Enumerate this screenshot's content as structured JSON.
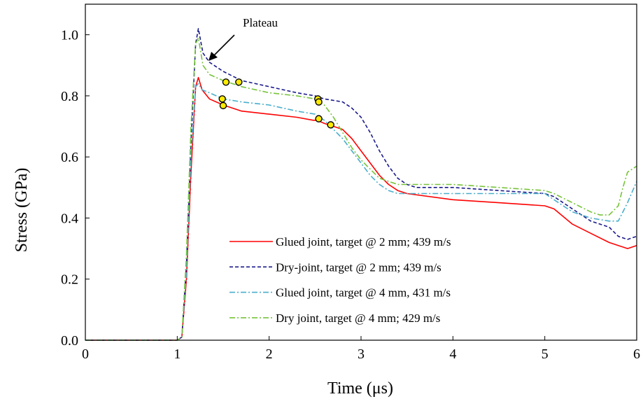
{
  "chart_data": {
    "type": "line",
    "title": "",
    "xlabel": "Time (μs)",
    "ylabel": "Stress (GPa)",
    "xlim": [
      0,
      6
    ],
    "ylim": [
      0,
      1.1
    ],
    "xticks": [
      0,
      1,
      2,
      3,
      4,
      5,
      6
    ],
    "yticks": [
      0.0,
      0.2,
      0.4,
      0.6,
      0.8,
      1.0
    ],
    "xtick_labels": [
      "0",
      "1",
      "2",
      "3",
      "4",
      "5",
      "6"
    ],
    "ytick_labels": [
      "0.0",
      "0.2",
      "0.4",
      "0.6",
      "0.8",
      "1.0"
    ],
    "grid": false,
    "legend_position": "lower-center",
    "annotation": {
      "text": "Plateau",
      "x": 1.35,
      "y": 0.93
    },
    "series": [
      {
        "name": "Glued joint, target @ 2 mm; 439 m/s",
        "color": "#ff0000",
        "style": "solid",
        "x": [
          0,
          1.0,
          1.05,
          1.1,
          1.15,
          1.2,
          1.23,
          1.27,
          1.35,
          1.5,
          1.7,
          2.0,
          2.3,
          2.48,
          2.52,
          2.6,
          2.7,
          2.8,
          2.9,
          3.0,
          3.1,
          3.2,
          3.3,
          3.4,
          3.5,
          4.0,
          4.5,
          5.0,
          5.1,
          5.3,
          5.5,
          5.7,
          5.8,
          5.9,
          6.0
        ],
        "y": [
          0,
          0,
          0.01,
          0.2,
          0.55,
          0.83,
          0.86,
          0.82,
          0.79,
          0.77,
          0.75,
          0.74,
          0.73,
          0.72,
          0.72,
          0.71,
          0.7,
          0.69,
          0.66,
          0.62,
          0.58,
          0.54,
          0.51,
          0.49,
          0.48,
          0.46,
          0.45,
          0.44,
          0.43,
          0.38,
          0.35,
          0.32,
          0.31,
          0.3,
          0.31
        ]
      },
      {
        "name": "Dry-joint, target @ 2 mm; 439 m/s",
        "color": "#1a1a8c",
        "style": "dashed",
        "x": [
          0,
          1.0,
          1.05,
          1.1,
          1.15,
          1.2,
          1.23,
          1.28,
          1.35,
          1.5,
          1.7,
          2.0,
          2.3,
          2.5,
          2.6,
          2.8,
          2.9,
          3.0,
          3.1,
          3.2,
          3.3,
          3.4,
          3.5,
          3.6,
          4.0,
          4.5,
          5.0,
          5.1,
          5.3,
          5.5,
          5.7,
          5.8,
          5.9,
          6.0
        ],
        "y": [
          0,
          0,
          0.01,
          0.25,
          0.65,
          0.97,
          1.02,
          0.94,
          0.91,
          0.88,
          0.85,
          0.83,
          0.81,
          0.8,
          0.79,
          0.78,
          0.76,
          0.73,
          0.68,
          0.62,
          0.57,
          0.53,
          0.51,
          0.5,
          0.5,
          0.49,
          0.48,
          0.47,
          0.43,
          0.39,
          0.37,
          0.34,
          0.33,
          0.34
        ]
      },
      {
        "name": "Glued joint, target @ 4 mm, 431 m/s",
        "color": "#4aaecc",
        "style": "dashdot",
        "x": [
          0,
          1.0,
          1.05,
          1.1,
          1.15,
          1.2,
          1.23,
          1.27,
          1.35,
          1.5,
          1.7,
          2.0,
          2.3,
          2.5,
          2.6,
          2.7,
          2.8,
          2.9,
          3.0,
          3.1,
          3.2,
          3.3,
          3.4,
          3.5,
          4.0,
          4.5,
          5.0,
          5.1,
          5.3,
          5.5,
          5.7,
          5.8,
          5.9,
          6.0
        ],
        "y": [
          0,
          0,
          0.01,
          0.22,
          0.6,
          0.83,
          0.84,
          0.82,
          0.81,
          0.79,
          0.78,
          0.77,
          0.75,
          0.74,
          0.72,
          0.69,
          0.66,
          0.62,
          0.58,
          0.54,
          0.51,
          0.49,
          0.48,
          0.48,
          0.48,
          0.48,
          0.48,
          0.46,
          0.42,
          0.4,
          0.39,
          0.39,
          0.45,
          0.52
        ]
      },
      {
        "name": "Dry joint, target @ 4 mm; 429 m/s",
        "color": "#77c33a",
        "style": "dashdot",
        "x": [
          0,
          1.0,
          1.05,
          1.1,
          1.15,
          1.2,
          1.23,
          1.28,
          1.35,
          1.5,
          1.7,
          2.0,
          2.3,
          2.5,
          2.6,
          2.7,
          2.8,
          2.9,
          3.0,
          3.1,
          3.2,
          3.3,
          3.4,
          3.5,
          4.0,
          4.5,
          5.0,
          5.1,
          5.3,
          5.5,
          5.6,
          5.7,
          5.8,
          5.85,
          5.9,
          6.0
        ],
        "y": [
          0,
          0,
          0.01,
          0.28,
          0.7,
          0.97,
          0.99,
          0.9,
          0.87,
          0.85,
          0.83,
          0.81,
          0.8,
          0.79,
          0.77,
          0.73,
          0.68,
          0.63,
          0.59,
          0.56,
          0.53,
          0.52,
          0.51,
          0.51,
          0.51,
          0.5,
          0.49,
          0.48,
          0.45,
          0.42,
          0.41,
          0.41,
          0.44,
          0.5,
          0.55,
          0.57
        ]
      }
    ],
    "markers": {
      "color": "#ffeb00",
      "edge_color": "#000000",
      "points": [
        [
          1.53,
          0.845
        ],
        [
          1.67,
          0.845
        ],
        [
          1.49,
          0.79
        ],
        [
          1.5,
          0.768
        ],
        [
          2.53,
          0.79
        ],
        [
          2.54,
          0.78
        ],
        [
          2.54,
          0.725
        ],
        [
          2.67,
          0.705
        ]
      ]
    }
  }
}
